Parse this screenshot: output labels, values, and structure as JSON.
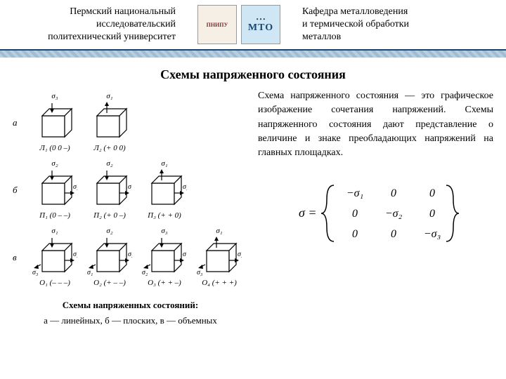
{
  "header": {
    "left_line1": "Пермский национальный",
    "left_line2": "исследовательский",
    "left_line3": "политехнический университет",
    "right_line1": "Кафедра металловедения",
    "right_line2": "и термической обработки",
    "right_line3": "металлов",
    "logo1_text": "ПНИПУ",
    "logo2_text": "МТО"
  },
  "title": "Схемы напряженного состояния",
  "description": "Схема напряженного состояния — это графическое изображение сочетания напряжений. Схемы напряженного состояния дают представление о величине и знаке преобладающих напряжений на главных площадках.",
  "caption": {
    "line1": "Схемы напряженных состояний:",
    "line2": "а — линейных, б — плоских, в — объемных"
  },
  "rows": [
    {
      "label": "а",
      "cubes": [
        {
          "top": "σ₃",
          "arrows": "down",
          "bottom": "Л₁ (0 0 –)"
        },
        {
          "top": "σ₁",
          "arrows": "up",
          "bottom": "Л₂ (+ 0 0)"
        }
      ]
    },
    {
      "label": "б",
      "cubes": [
        {
          "top": "σ₂",
          "sigma_r": "σ₃",
          "arrows": "down-in",
          "bottom": "П₁ (0 – –)"
        },
        {
          "top": "σ₂",
          "sigma_r": "σ₁",
          "arrows": "mix",
          "bottom": "П₂ (+ 0 –)"
        },
        {
          "top": "σ₁",
          "sigma_r": "σ₂",
          "arrows": "up-out",
          "bottom": "П₃ (+ + 0)"
        }
      ]
    },
    {
      "label": "в",
      "cubes": [
        {
          "top": "σ₁",
          "sigma_r": "σ₂",
          "sigma_l": "σ₃",
          "arrows": "all-in",
          "bottom": "О₁ (– – –)"
        },
        {
          "top": "σ₂",
          "sigma_r": "σ₃",
          "sigma_l": "σ₁",
          "arrows": "mix3",
          "bottom": "О₂ (+ – –)"
        },
        {
          "top": "σ₃",
          "sigma_r": "σ₁",
          "sigma_l": "σ₂",
          "arrows": "mix3b",
          "bottom": "О₃ (+ + –)"
        },
        {
          "top": "σ₁",
          "sigma_r": "σ₂",
          "sigma_l": "σ₃",
          "arrows": "all-out",
          "bottom": "О₄ (+ + +)"
        }
      ]
    }
  ],
  "matrix": {
    "lhs": "σ =",
    "r1c1": "−σ₁",
    "r1c2": "0",
    "r1c3": "0",
    "r2c1": "0",
    "r2c2": "−σ₂",
    "r2c3": "0",
    "r3c1": "0",
    "r3c2": "0",
    "r3c3": "−σ₃"
  },
  "colors": {
    "stroke": "#000000",
    "header_blue": "#1a4670"
  }
}
